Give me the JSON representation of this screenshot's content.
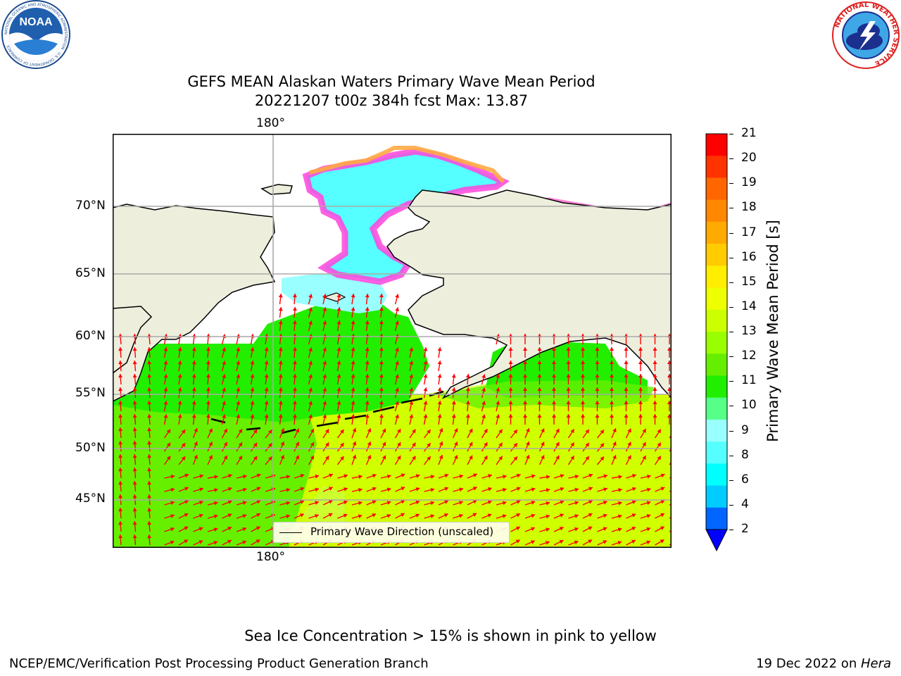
{
  "title": {
    "line1": "GEFS MEAN Alaskan Waters Primary Wave Mean Period",
    "line2": "20221207 t00z 384h fcst   Max: 13.87"
  },
  "map": {
    "lon_label_top": "180°",
    "lon_label_bottom": "180°",
    "lat_labels": [
      "70°N",
      "65°N",
      "60°N",
      "55°N",
      "50°N",
      "45°N"
    ],
    "land_color": "#eeeedd",
    "arrow_color": "#ff0000"
  },
  "legend": {
    "label": "Primary Wave Direction (unscaled)"
  },
  "colorbar": {
    "label": "Primary Wave Mean Period [s]",
    "ticks": [
      "21",
      "20",
      "19",
      "18",
      "17",
      "16",
      "15",
      "14",
      "13",
      "12",
      "11",
      "10",
      "9",
      "8",
      "6",
      "4",
      "2"
    ],
    "colors": [
      "#ff0000",
      "#ff3300",
      "#ff6600",
      "#ff8800",
      "#ffaa00",
      "#ffcc00",
      "#ffee00",
      "#eeff00",
      "#ccff00",
      "#99ff00",
      "#66ee00",
      "#22ee00",
      "#55ff88",
      "#99ffff",
      "#55ffff",
      "#00ffff",
      "#00ccff",
      "#0066ff"
    ],
    "extend_color": "#0000ff"
  },
  "logos": {
    "noaa_text": "NOAA",
    "noaa_ring_text": "NATIONAL OCEANIC AND ATMOSPHERIC ADMINISTRATION · U.S. DEPARTMENT OF COMMERCE",
    "nws_ring_text": "NATIONAL WEATHER SERVICE"
  },
  "footer": {
    "ice_note": "Sea Ice Concentration > 15% is shown in pink to yellow",
    "left": "NCEP/EMC/Verification Post Processing Product Generation Branch",
    "date": "19 Dec 2022 on ",
    "machine": "Hera"
  }
}
